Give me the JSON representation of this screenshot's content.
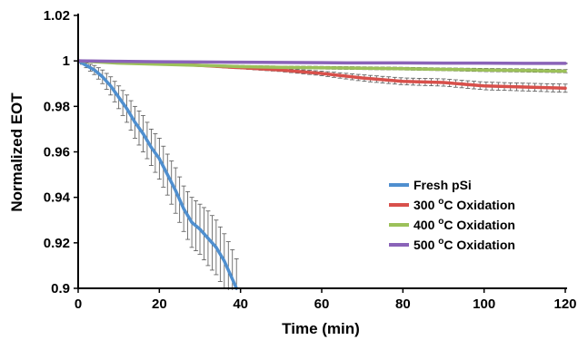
{
  "chart_data": {
    "type": "line",
    "title": "",
    "xlabel": "Time (min)",
    "ylabel": "Normalized EOT",
    "xlim": [
      0,
      120
    ],
    "ylim": [
      0.9,
      1.02
    ],
    "x_ticks": [
      "0",
      "20",
      "40",
      "60",
      "80",
      "100",
      "120"
    ],
    "y_ticks": [
      "0.9",
      "0.92",
      "0.94",
      "0.96",
      "0.98",
      "1",
      "1.02"
    ],
    "grid": false,
    "legend_position": "right",
    "series": [
      {
        "name": "Fresh pSi",
        "color": "#4f8fcf",
        "x": [
          0,
          2,
          4,
          6,
          8,
          10,
          12,
          14,
          16,
          18,
          20,
          22,
          24,
          26,
          28,
          30,
          32,
          34,
          36,
          38,
          39
        ],
        "y": [
          1.0,
          0.998,
          0.996,
          0.993,
          0.989,
          0.984,
          0.979,
          0.973,
          0.968,
          0.962,
          0.957,
          0.95,
          0.943,
          0.935,
          0.929,
          0.926,
          0.922,
          0.918,
          0.912,
          0.904,
          0.9
        ],
        "error": [
          0,
          0.001,
          0.002,
          0.003,
          0.004,
          0.005,
          0.006,
          0.007,
          0.008,
          0.008,
          0.009,
          0.009,
          0.01,
          0.01,
          0.011,
          0.011,
          0.012,
          0.012,
          0.012,
          0.013,
          0.013
        ]
      },
      {
        "name": "300 oC Oxidation",
        "color": "#d8504b",
        "x": [
          0,
          10,
          20,
          30,
          40,
          50,
          60,
          70,
          80,
          90,
          100,
          110,
          120
        ],
        "y": [
          1.0,
          0.9995,
          0.999,
          0.998,
          0.997,
          0.996,
          0.9945,
          0.9925,
          0.991,
          0.9905,
          0.989,
          0.9885,
          0.988
        ],
        "error": [
          0,
          0.0002,
          0.0003,
          0.0004,
          0.0005,
          0.0007,
          0.001,
          0.0014,
          0.0015,
          0.0016,
          0.0017,
          0.0017,
          0.0018
        ]
      },
      {
        "name": "400 oC Oxidation",
        "color": "#9cc15a",
        "x": [
          0,
          10,
          20,
          30,
          40,
          50,
          60,
          70,
          80,
          90,
          100,
          110,
          120
        ],
        "y": [
          1.0,
          0.999,
          0.9985,
          0.998,
          0.9975,
          0.9972,
          0.997,
          0.9968,
          0.9966,
          0.9963,
          0.996,
          0.9958,
          0.9955
        ],
        "error": [
          0,
          0.0002,
          0.0003,
          0.0004,
          0.0005,
          0.0005,
          0.0006,
          0.0006,
          0.0006,
          0.0006,
          0.0007,
          0.0007,
          0.0007
        ]
      },
      {
        "name": "500 oC Oxidation",
        "color": "#8a63b8",
        "x": [
          0,
          10,
          20,
          30,
          40,
          50,
          60,
          70,
          80,
          90,
          100,
          110,
          120
        ],
        "y": [
          1.0,
          0.9998,
          0.9996,
          0.9995,
          0.9994,
          0.9993,
          0.9992,
          0.9991,
          0.9991,
          0.999,
          0.999,
          0.9989,
          0.9989
        ],
        "error": [
          0,
          0.0001,
          0.0001,
          0.0001,
          0.0001,
          0.0001,
          0.0001,
          0.0001,
          0.0001,
          0.0001,
          0.0001,
          0.0001,
          0.0001
        ]
      }
    ],
    "legend": {
      "entries": [
        {
          "prefix": "Fresh pSi",
          "sup": "",
          "suffix": ""
        },
        {
          "prefix": "300 ",
          "sup": "o",
          "suffix": "C Oxidation"
        },
        {
          "prefix": "400 ",
          "sup": "o",
          "suffix": "C Oxidation"
        },
        {
          "prefix": "500 ",
          "sup": "o",
          "suffix": "C Oxidation"
        }
      ]
    }
  }
}
